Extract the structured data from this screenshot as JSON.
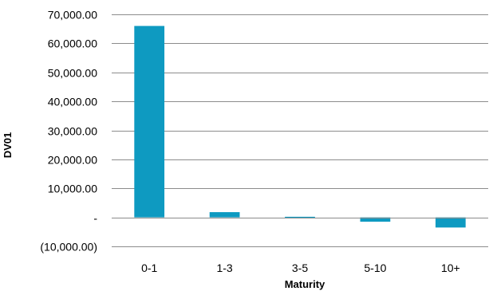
{
  "chart_data": {
    "type": "bar",
    "categories": [
      "0-1",
      "1-3",
      "3-5",
      "5-10",
      "10+"
    ],
    "values": [
      66000,
      1800,
      200,
      -1500,
      -3500
    ],
    "xlabel": "Maturity",
    "ylabel": "DV01",
    "ylim": [
      -10000,
      70000
    ],
    "y_ticks": [
      {
        "value": 70000,
        "label": "70,000.00"
      },
      {
        "value": 60000,
        "label": "60,000.00"
      },
      {
        "value": 50000,
        "label": "50,000.00"
      },
      {
        "value": 40000,
        "label": "40,000.00"
      },
      {
        "value": 30000,
        "label": "30,000.00"
      },
      {
        "value": 20000,
        "label": "20,000.00"
      },
      {
        "value": 10000,
        "label": "10,000.00"
      },
      {
        "value": 0,
        "label": "-"
      },
      {
        "value": -10000,
        "label": "(10,000.00)"
      }
    ],
    "grid": true,
    "legend": "none",
    "colors": {
      "bar": "#0E9AC1",
      "grid": "#8C8C8C"
    }
  }
}
